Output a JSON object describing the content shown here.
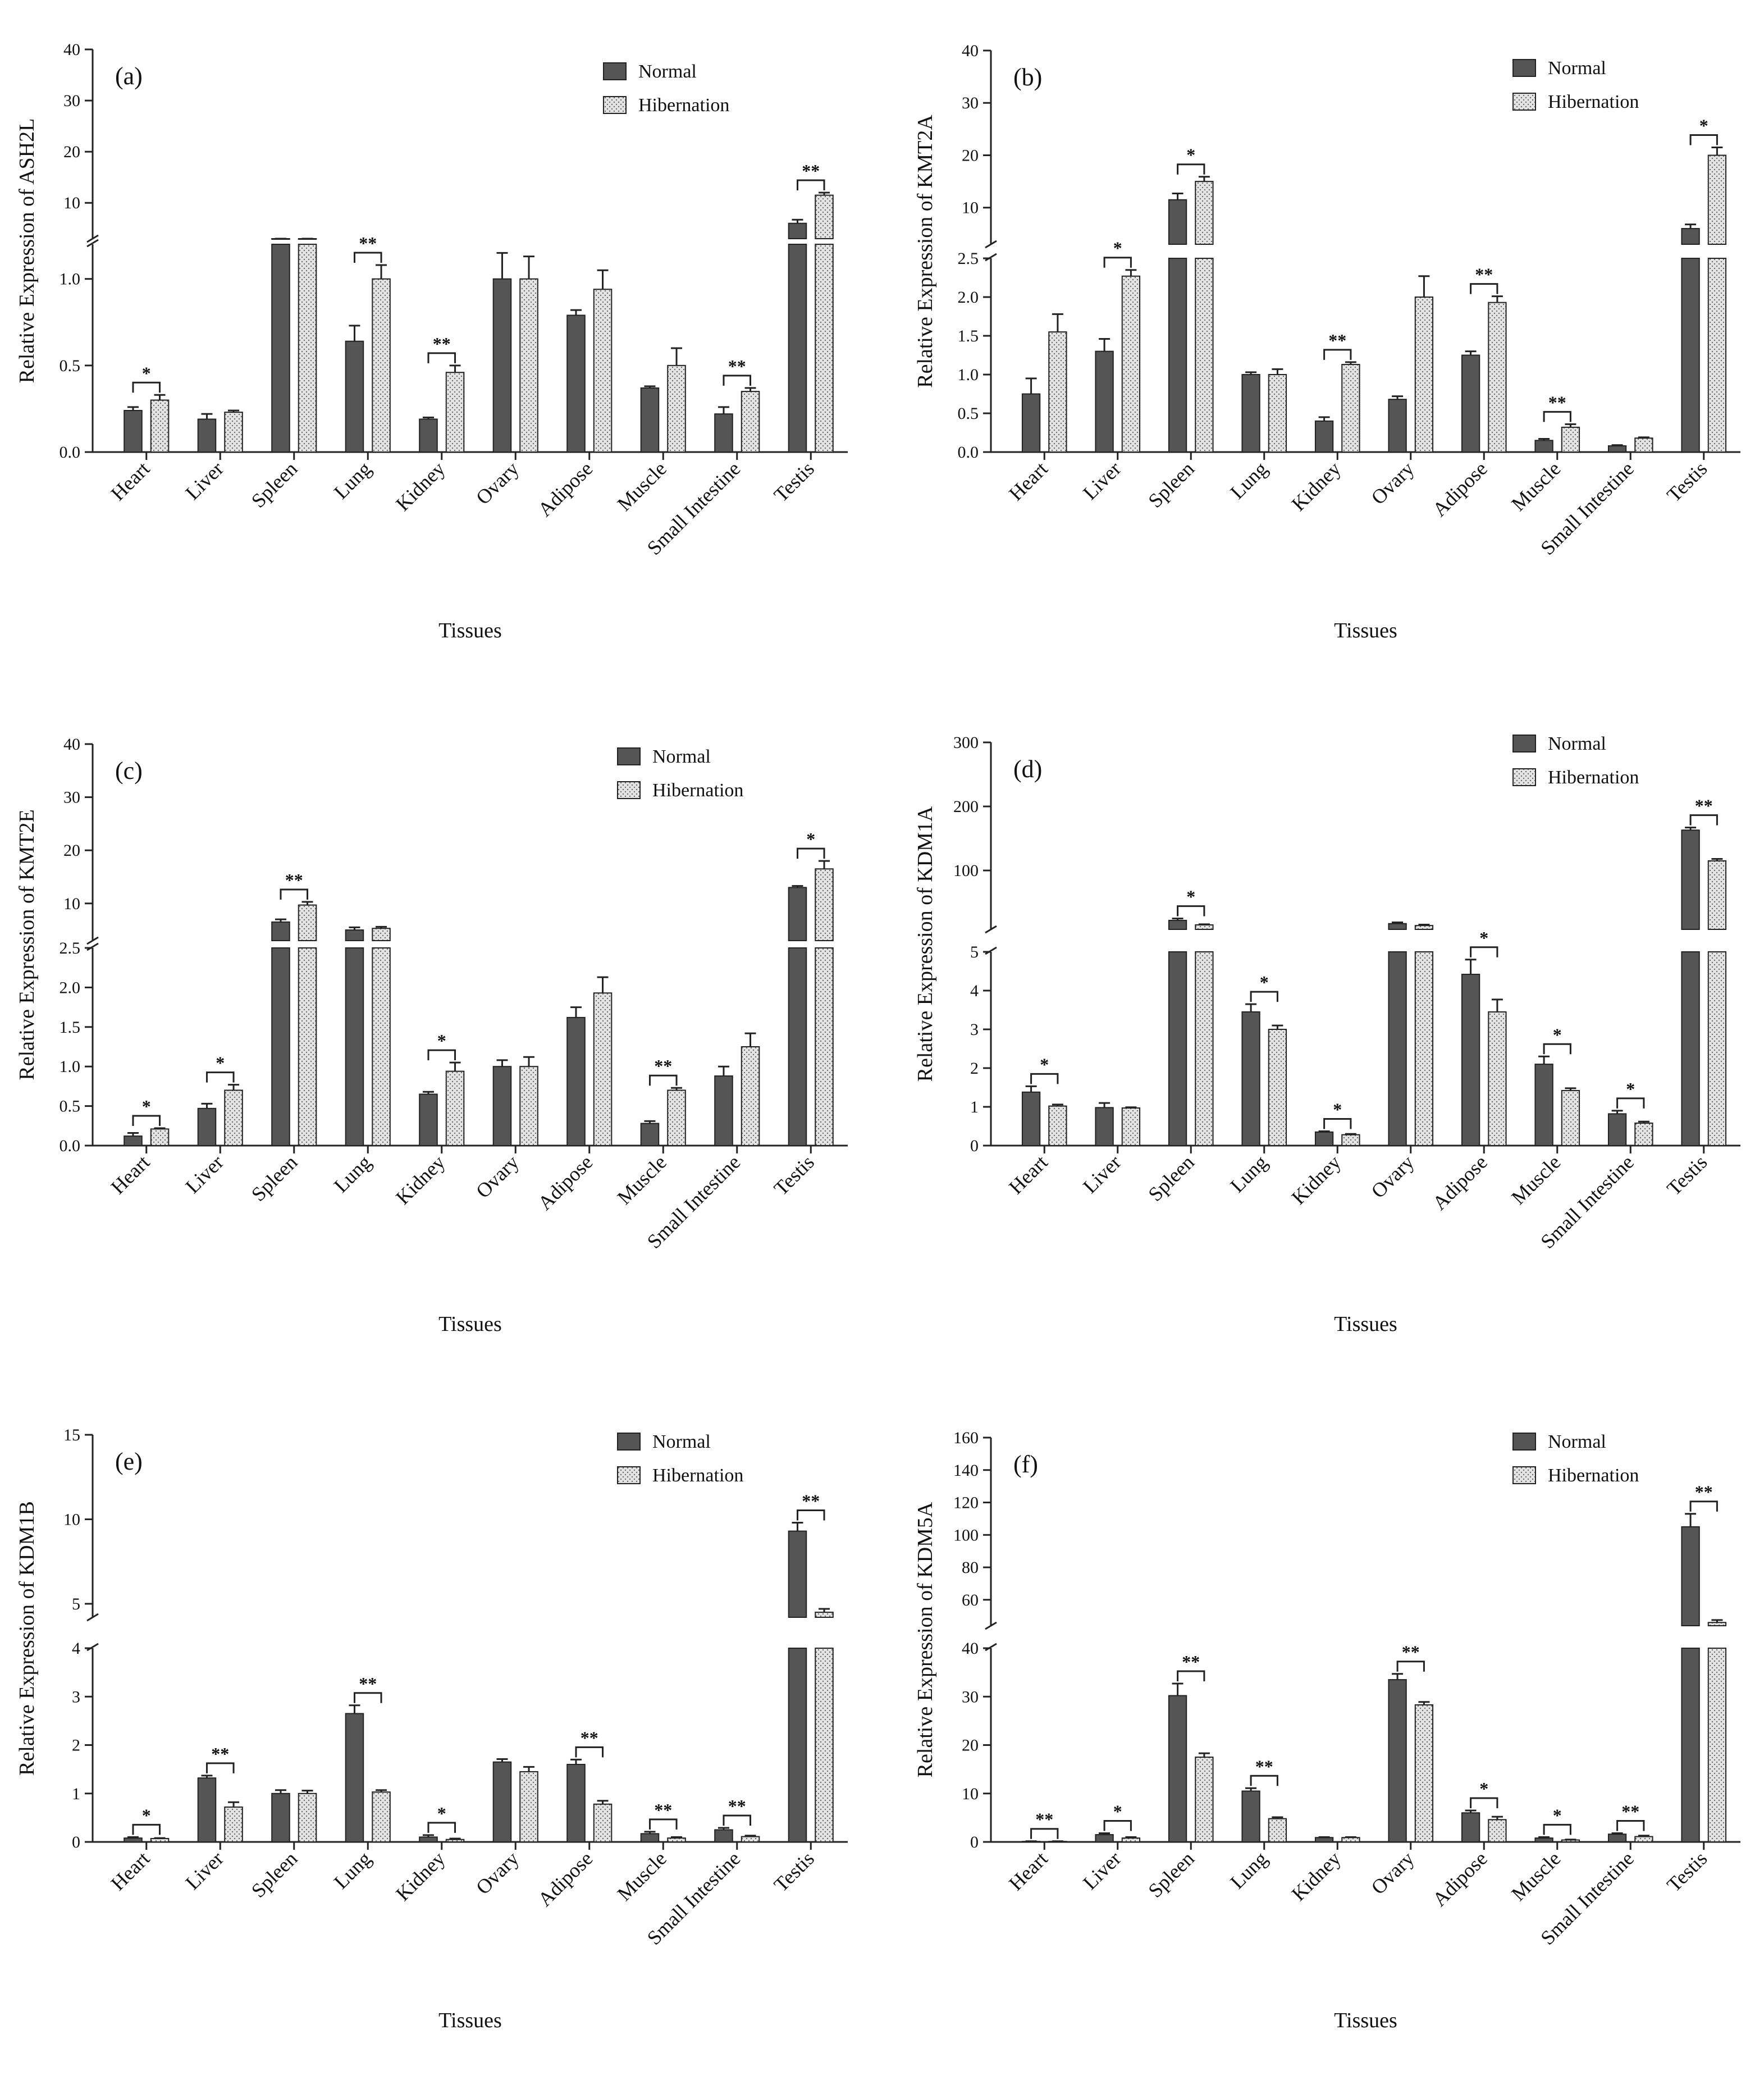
{
  "figure": {
    "legend": {
      "normal": "Normal",
      "hibernation": "Hibernation"
    },
    "colors": {
      "normal": "#555555",
      "hibernation": "#e4e4e4",
      "axis": "#222222",
      "text": "#111111"
    }
  },
  "chart_data": [
    {
      "panel": "(a)",
      "type": "bar",
      "title": "",
      "xlabel": "Tissues",
      "ylabel": "Relative Expression of ASH2L",
      "categories": [
        "Heart",
        "Liver",
        "Spleen",
        "Lung",
        "Kidney",
        "Ovary",
        "Adipose",
        "Muscle",
        "Small Intestine",
        "Testis"
      ],
      "series": [
        {
          "name": "Normal",
          "values": [
            0.24,
            0.19,
            1.4,
            0.64,
            0.19,
            1.0,
            0.79,
            0.37,
            0.22,
            6.0
          ],
          "errors": [
            0.02,
            0.03,
            0.05,
            0.09,
            0.01,
            0.15,
            0.03,
            0.01,
            0.04,
            0.7
          ]
        },
        {
          "name": "Hibernation",
          "values": [
            0.3,
            0.23,
            1.5,
            1.0,
            0.46,
            1.0,
            0.94,
            0.5,
            0.35,
            11.5
          ],
          "errors": [
            0.03,
            0.01,
            0.05,
            0.08,
            0.04,
            0.13,
            0.11,
            0.1,
            0.02,
            0.5
          ]
        }
      ],
      "significance": [
        "*",
        "",
        "",
        "**",
        "**",
        "",
        "",
        "",
        "**",
        "**"
      ],
      "axis": {
        "break": true,
        "lower": {
          "range": [
            0,
            1.2
          ],
          "ticks": [
            0,
            0.5,
            1.0
          ],
          "tick_labels": [
            "0.0",
            "0.5",
            "1.0"
          ]
        },
        "upper": {
          "range": [
            3,
            40
          ],
          "ticks": [
            10,
            20,
            30,
            40
          ],
          "tick_labels": [
            "10",
            "20",
            "30",
            "40"
          ]
        }
      }
    },
    {
      "panel": "(b)",
      "type": "bar",
      "title": "",
      "xlabel": "Tissues",
      "ylabel": "Relative Expression of KMT2A",
      "categories": [
        "Heart",
        "Liver",
        "Spleen",
        "Lung",
        "Kidney",
        "Ovary",
        "Adipose",
        "Muscle",
        "Small Intestine",
        "Testis"
      ],
      "series": [
        {
          "name": "Normal",
          "values": [
            0.75,
            1.3,
            11.5,
            1.0,
            0.4,
            0.68,
            1.25,
            0.15,
            0.08,
            6.0
          ],
          "errors": [
            0.2,
            0.16,
            1.2,
            0.03,
            0.05,
            0.04,
            0.05,
            0.02,
            0.01,
            0.8
          ]
        },
        {
          "name": "Hibernation",
          "values": [
            1.55,
            2.27,
            15.0,
            1.0,
            1.13,
            2.0,
            1.93,
            0.32,
            0.18,
            20.0
          ],
          "errors": [
            0.23,
            0.08,
            0.9,
            0.07,
            0.03,
            0.27,
            0.08,
            0.04,
            0.01,
            1.5
          ]
        }
      ],
      "significance": [
        "",
        "*",
        "*",
        "",
        "**",
        "",
        "**",
        "**",
        "",
        "*"
      ],
      "axis": {
        "break": true,
        "lower": {
          "range": [
            0,
            2.5
          ],
          "ticks": [
            0,
            0.5,
            1.0,
            1.5,
            2.0,
            2.5
          ],
          "tick_labels": [
            "0.0",
            "0.5",
            "1.0",
            "1.5",
            "2.0",
            "2.5"
          ]
        },
        "upper": {
          "range": [
            3,
            40
          ],
          "ticks": [
            10,
            20,
            30,
            40
          ],
          "tick_labels": [
            "10",
            "20",
            "30",
            "40"
          ]
        }
      }
    },
    {
      "panel": "(c)",
      "type": "bar",
      "title": "",
      "xlabel": "Tissues",
      "ylabel": "Relative Expression of KMT2E",
      "categories": [
        "Heart",
        "Liver",
        "Spleen",
        "Lung",
        "Kidney",
        "Ovary",
        "Adipose",
        "Muscle",
        "Small Intestine",
        "Testis"
      ],
      "series": [
        {
          "name": "Normal",
          "values": [
            0.12,
            0.47,
            6.5,
            5.0,
            0.65,
            1.0,
            1.62,
            0.28,
            0.88,
            13.0
          ],
          "errors": [
            0.04,
            0.06,
            0.5,
            0.5,
            0.03,
            0.08,
            0.13,
            0.03,
            0.12,
            0.3
          ]
        },
        {
          "name": "Hibernation",
          "values": [
            0.21,
            0.7,
            9.7,
            5.3,
            0.94,
            1.0,
            1.93,
            0.7,
            1.25,
            16.5
          ],
          "errors": [
            0.01,
            0.07,
            0.6,
            0.3,
            0.11,
            0.12,
            0.2,
            0.03,
            0.17,
            1.5
          ]
        }
      ],
      "significance": [
        "*",
        "*",
        "**",
        "",
        "*",
        "",
        "",
        "**",
        "",
        "*"
      ],
      "axis": {
        "break": true,
        "lower": {
          "range": [
            0,
            2.5
          ],
          "ticks": [
            0,
            0.5,
            1.0,
            1.5,
            2.0,
            2.5
          ],
          "tick_labels": [
            "0.0",
            "0.5",
            "1.0",
            "1.5",
            "2.0",
            "2.5"
          ]
        },
        "upper": {
          "range": [
            3,
            40
          ],
          "ticks": [
            10,
            20,
            30,
            40
          ],
          "tick_labels": [
            "10",
            "20",
            "30",
            "40"
          ]
        }
      }
    },
    {
      "panel": "(d)",
      "type": "bar",
      "title": "",
      "xlabel": "Tissues",
      "ylabel": "Relative Expression of KDM1A",
      "categories": [
        "Heart",
        "Liver",
        "Spleen",
        "Lung",
        "Kidney",
        "Ovary",
        "Adipose",
        "Muscle",
        "Small Intestine",
        "Testis"
      ],
      "series": [
        {
          "name": "Normal",
          "values": [
            1.38,
            0.98,
            22,
            3.45,
            0.35,
            17,
            4.42,
            2.1,
            0.82,
            163
          ],
          "errors": [
            0.15,
            0.12,
            3,
            0.2,
            0.02,
            2,
            0.38,
            0.2,
            0.08,
            4
          ]
        },
        {
          "name": "Hibernation",
          "values": [
            1.02,
            0.97,
            15,
            3.0,
            0.28,
            14,
            3.45,
            1.42,
            0.58,
            115
          ],
          "errors": [
            0.04,
            0.02,
            1,
            0.1,
            0.02,
            1.5,
            0.32,
            0.06,
            0.04,
            3
          ]
        }
      ],
      "significance": [
        "*",
        "",
        "*",
        "*",
        "*",
        "",
        "*",
        "*",
        "*",
        "**"
      ],
      "axis": {
        "break": true,
        "lower": {
          "range": [
            0,
            5
          ],
          "ticks": [
            0,
            1,
            2,
            3,
            4,
            5
          ],
          "tick_labels": [
            "0",
            "1",
            "2",
            "3",
            "4",
            "5"
          ]
        },
        "upper": {
          "range": [
            8,
            300
          ],
          "ticks": [
            100,
            200,
            300
          ],
          "tick_labels": [
            "100",
            "200",
            "300"
          ]
        }
      }
    },
    {
      "panel": "(e)",
      "type": "bar",
      "title": "",
      "xlabel": "Tissues",
      "ylabel": "Relative Expression of KDM1B",
      "categories": [
        "Heart",
        "Liver",
        "Spleen",
        "Lung",
        "Kidney",
        "Ovary",
        "Adipose",
        "Muscle",
        "Small Intestine",
        "Testis"
      ],
      "series": [
        {
          "name": "Normal",
          "values": [
            0.08,
            1.32,
            1.0,
            2.65,
            0.1,
            1.65,
            1.6,
            0.17,
            0.25,
            9.3
          ],
          "errors": [
            0.02,
            0.05,
            0.07,
            0.17,
            0.04,
            0.06,
            0.1,
            0.04,
            0.04,
            0.5
          ]
        },
        {
          "name": "Hibernation",
          "values": [
            0.07,
            0.72,
            1.0,
            1.03,
            0.05,
            1.45,
            0.78,
            0.08,
            0.11,
            4.5
          ],
          "errors": [
            0.01,
            0.1,
            0.06,
            0.04,
            0.02,
            0.1,
            0.07,
            0.02,
            0.02,
            0.2
          ]
        }
      ],
      "significance": [
        "*",
        "**",
        "",
        "**",
        "*",
        "",
        "**",
        "**",
        "**",
        "**"
      ],
      "axis": {
        "break": true,
        "lower": {
          "range": [
            0,
            4
          ],
          "ticks": [
            0,
            1,
            2,
            3,
            4
          ],
          "tick_labels": [
            "0",
            "1",
            "2",
            "3",
            "4"
          ]
        },
        "upper": {
          "range": [
            4.2,
            15
          ],
          "ticks": [
            5,
            10,
            15
          ],
          "tick_labels": [
            "5",
            "10",
            "15"
          ]
        }
      }
    },
    {
      "panel": "(f)",
      "type": "bar",
      "title": "",
      "xlabel": "Tissues",
      "ylabel": "Relative Expression of KDM5A",
      "categories": [
        "Heart",
        "Liver",
        "Spleen",
        "Lung",
        "Kidney",
        "Ovary",
        "Adipose",
        "Muscle",
        "Small Intestine",
        "Testis"
      ],
      "series": [
        {
          "name": "Normal",
          "values": [
            0.1,
            1.5,
            30.2,
            10.5,
            0.9,
            33.5,
            6.0,
            0.8,
            1.6,
            105
          ],
          "errors": [
            0.05,
            0.3,
            2.5,
            0.6,
            0.1,
            1.2,
            0.5,
            0.2,
            0.2,
            8
          ]
        },
        {
          "name": "Hibernation",
          "values": [
            0.1,
            0.8,
            17.5,
            4.8,
            0.9,
            28.3,
            4.6,
            0.4,
            1.1,
            46
          ],
          "errors": [
            0.05,
            0.2,
            0.8,
            0.3,
            0.1,
            0.6,
            0.6,
            0.1,
            0.2,
            1.5
          ]
        }
      ],
      "significance": [
        "**",
        "*",
        "**",
        "**",
        "",
        "**",
        "*",
        "*",
        "**",
        "**"
      ],
      "axis": {
        "break": true,
        "lower": {
          "range": [
            0,
            40
          ],
          "ticks": [
            0,
            10,
            20,
            30,
            40
          ],
          "tick_labels": [
            "0",
            "10",
            "20",
            "30",
            "40"
          ]
        },
        "upper": {
          "range": [
            44,
            160
          ],
          "ticks": [
            60,
            80,
            100,
            120,
            140,
            160
          ],
          "tick_labels": [
            "60",
            "80",
            "100",
            "120",
            "140",
            "160"
          ]
        }
      }
    }
  ]
}
